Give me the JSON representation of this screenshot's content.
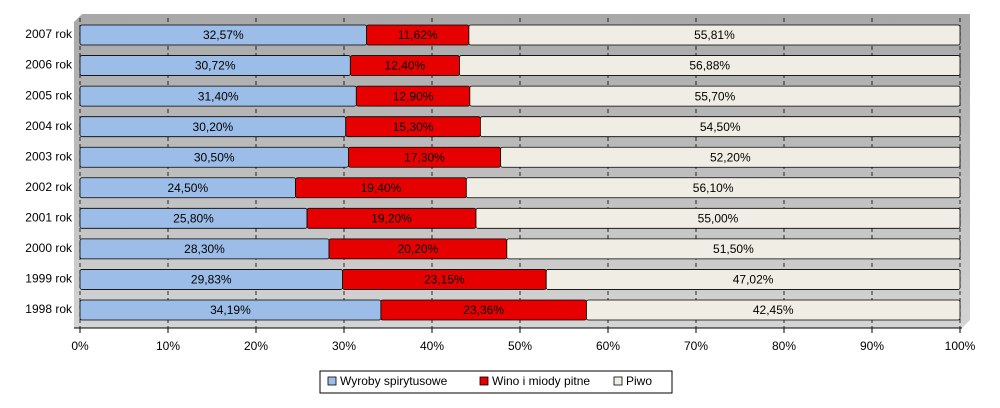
{
  "chart_data": {
    "type": "stacked-bar-horizontal",
    "categories": [
      "2007 rok",
      "2006 rok",
      "2005 rok",
      "2004 rok",
      "2003 rok",
      "2002 rok",
      "2001 rok",
      "2000 rok",
      "1999 rok",
      "1998 rok"
    ],
    "series": [
      {
        "name": "Wyroby spirytusowe",
        "color": "#9cbde8",
        "values": [
          32.57,
          30.72,
          31.4,
          30.2,
          30.5,
          24.5,
          25.8,
          28.3,
          29.83,
          34.19
        ],
        "value_labels": [
          "32,57%",
          "30,72%",
          "31,40%",
          "30,20%",
          "30,50%",
          "24,50%",
          "25,80%",
          "28,30%",
          "29,83%",
          "34,19%"
        ]
      },
      {
        "name": "Wino i miody pitne",
        "color": "#e60000",
        "values": [
          11.62,
          12.4,
          12.9,
          15.3,
          17.3,
          19.4,
          19.2,
          20.2,
          23.15,
          23.36
        ],
        "value_labels": [
          "11,62%",
          "12,40%",
          "12,90%",
          "15,30%",
          "17,30%",
          "19,40%",
          "19,20%",
          "20,20%",
          "23,15%",
          "23,36%"
        ]
      },
      {
        "name": "Piwo",
        "color": "#f0eee4",
        "values": [
          55.81,
          56.88,
          55.7,
          54.5,
          52.2,
          56.1,
          55.0,
          51.5,
          47.02,
          42.45
        ],
        "value_labels": [
          "55,81%",
          "56,88%",
          "55,70%",
          "54,50%",
          "52,20%",
          "56,10%",
          "55,00%",
          "51,50%",
          "47,02%",
          "42,45%"
        ]
      }
    ],
    "xlim": [
      0,
      100
    ],
    "xticks": [
      {
        "value": 0,
        "label": "0%"
      },
      {
        "value": 10,
        "label": "10%"
      },
      {
        "value": 20,
        "label": "20%"
      },
      {
        "value": 30,
        "label": "30%"
      },
      {
        "value": 40,
        "label": "40%"
      },
      {
        "value": 50,
        "label": "50%"
      },
      {
        "value": 60,
        "label": "60%"
      },
      {
        "value": 70,
        "label": "70%"
      },
      {
        "value": 80,
        "label": "80%"
      },
      {
        "value": 90,
        "label": "90%"
      },
      {
        "value": 100,
        "label": "100%"
      }
    ],
    "grid": true,
    "legend": "bottom"
  }
}
